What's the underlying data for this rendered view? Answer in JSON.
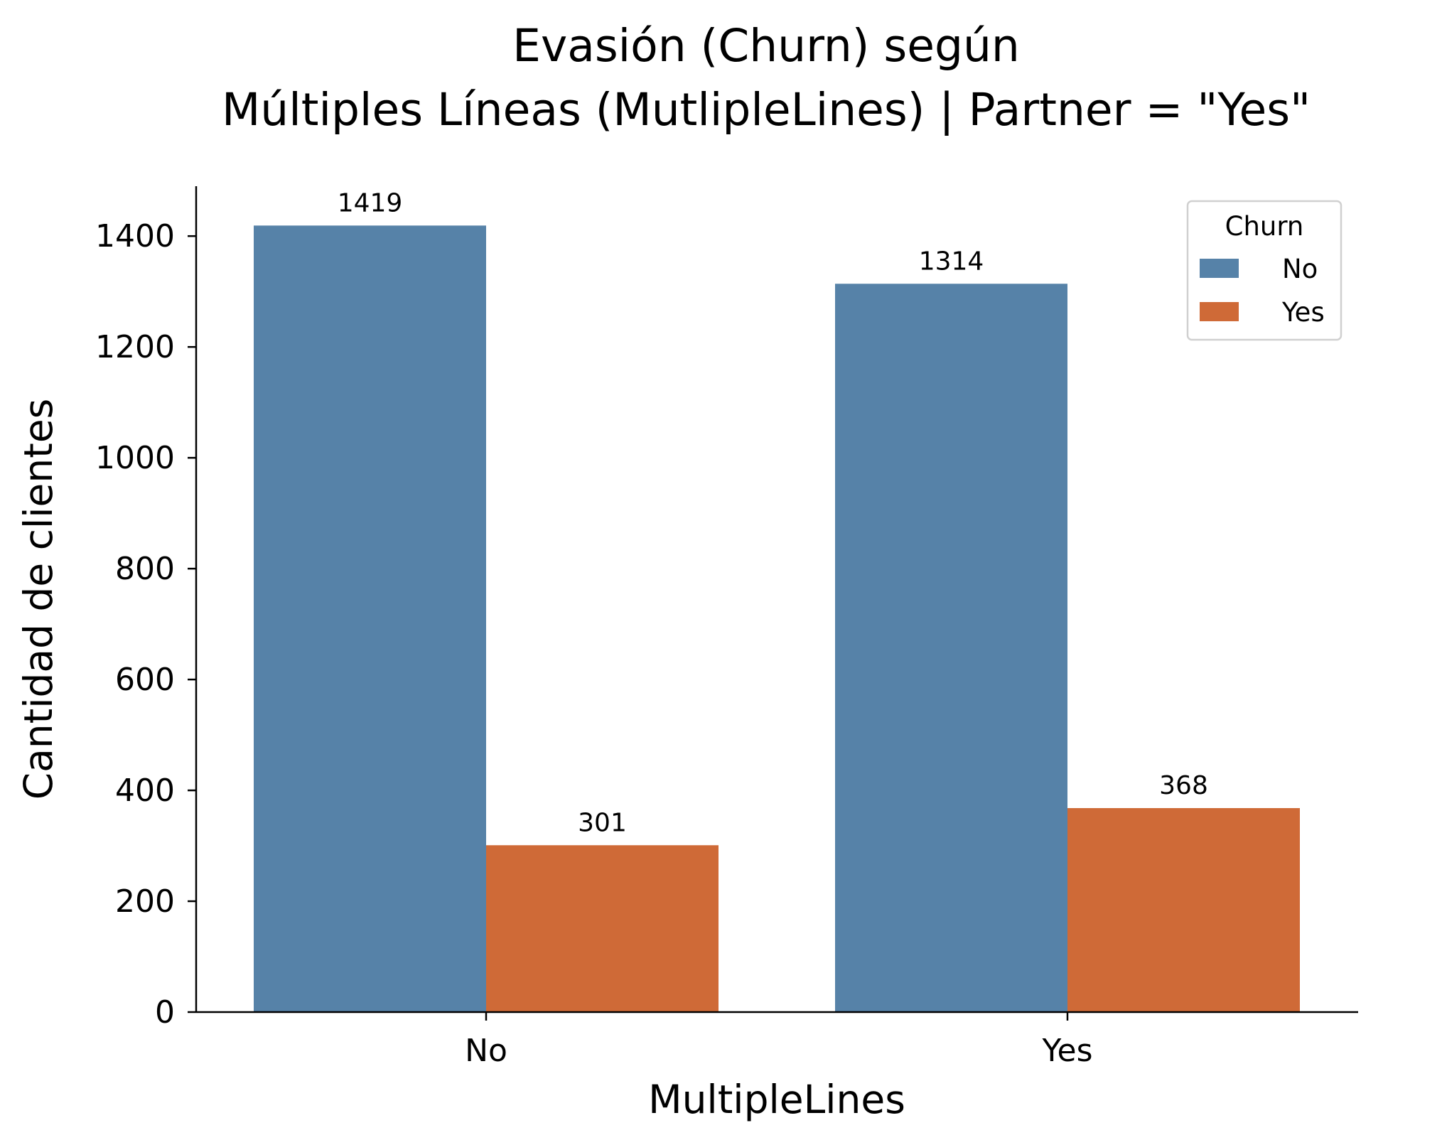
{
  "chart_data": {
    "type": "bar",
    "title_line1": "Evasión (Churn) según",
    "title_line2": "Múltiples Líneas (MutlipleLines) | Partner = \"Yes\"",
    "xlabel": "MultipleLines",
    "ylabel": "Cantidad de clientes",
    "categories": [
      "No",
      "Yes"
    ],
    "series": [
      {
        "name": "No",
        "values": [
          1419,
          1314
        ],
        "color": "#5682a8"
      },
      {
        "name": "Yes",
        "values": [
          301,
          368
        ],
        "color": "#cf6a37"
      }
    ],
    "data_labels": [
      [
        "1419",
        "1314"
      ],
      [
        "301",
        "368"
      ]
    ],
    "ylim": [
      0,
      1490
    ],
    "yticks": [
      0,
      200,
      400,
      600,
      800,
      1000,
      1200,
      1400
    ],
    "ytick_labels": [
      "0",
      "200",
      "400",
      "600",
      "800",
      "1000",
      "1200",
      "1400"
    ],
    "grid": false,
    "legend": {
      "title": "Churn",
      "placement": "upper right",
      "entries": [
        "No",
        "Yes"
      ]
    }
  }
}
